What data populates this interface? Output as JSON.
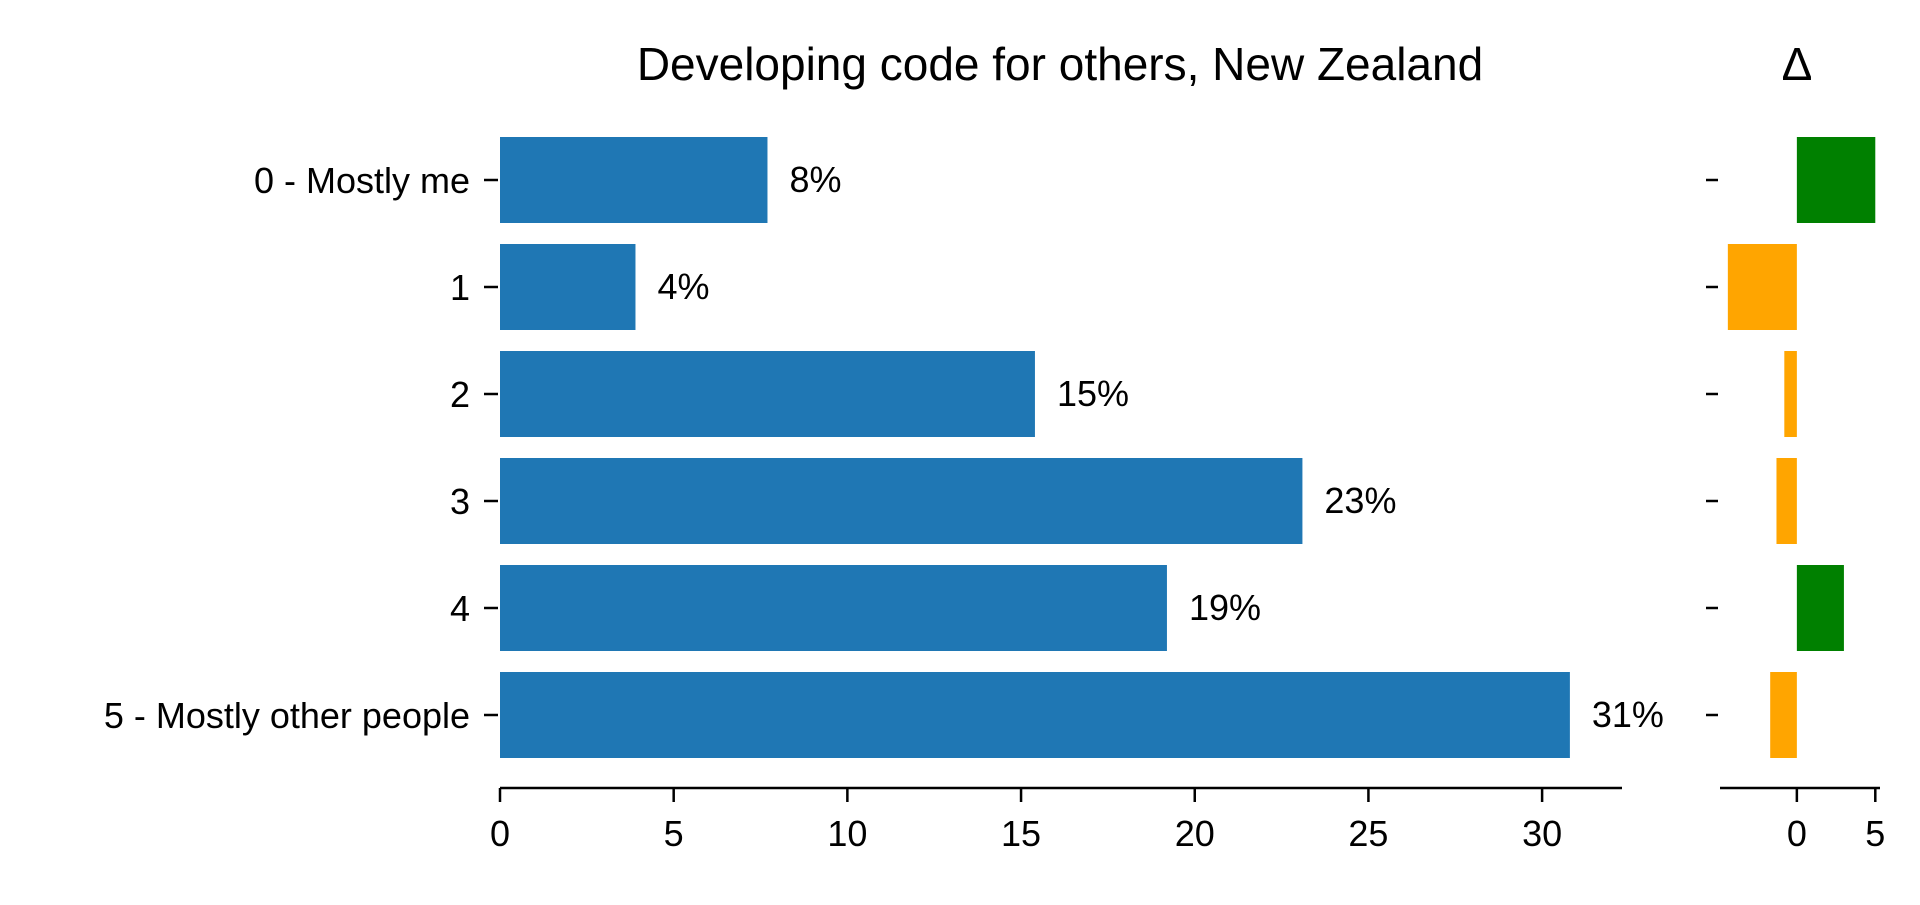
{
  "chart_data": [
    {
      "type": "bar",
      "orientation": "horizontal",
      "title": "Developing code for others, New Zealand",
      "xlabel": "",
      "ylabel": "",
      "categories": [
        "0 - Mostly me",
        "1",
        "2",
        "3",
        "4",
        "5 - Mostly other people"
      ],
      "values": [
        7.7,
        3.9,
        15.4,
        23.1,
        19.2,
        30.8
      ],
      "data_labels": [
        "8%",
        "4%",
        "15%",
        "23%",
        "19%",
        "31%"
      ],
      "xlim": [
        0,
        32.3
      ],
      "xticks": [
        0,
        5,
        10,
        15,
        20,
        25,
        30
      ],
      "xtick_labels": [
        "0",
        "5",
        "10",
        "15",
        "20",
        "25",
        "30"
      ],
      "grid": false,
      "bar_color": "#1f77b4"
    },
    {
      "type": "bar",
      "orientation": "horizontal",
      "title": "Δ",
      "xlabel": "",
      "ylabel": "",
      "categories": [
        "0 - Mostly me",
        "1",
        "2",
        "3",
        "4",
        "5 - Mostly other people"
      ],
      "values": [
        5.0,
        -4.4,
        -0.8,
        -1.3,
        3.0,
        -1.7
      ],
      "xlim": [
        -4.9,
        5.3
      ],
      "xticks": [
        0,
        5
      ],
      "xtick_labels": [
        "0",
        "5"
      ],
      "grid": false,
      "positive_color": "#008000",
      "negative_color": "#ffa500"
    }
  ]
}
